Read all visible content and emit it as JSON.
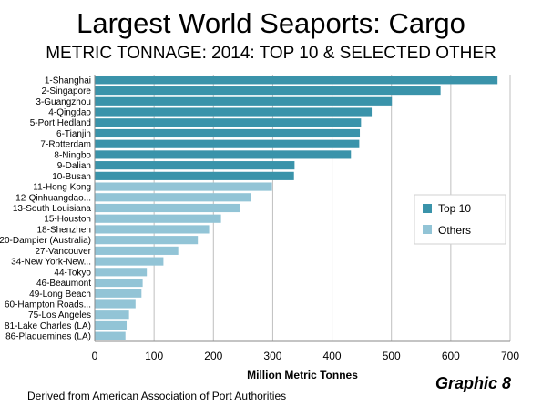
{
  "title": "Largest World Seaports: Cargo",
  "subtitle": "METRIC TONNAGE: 2014: TOP 10 & SELECTED OTHER",
  "graphic_label": "Graphic 8",
  "source": "Derived from American Association of Port Authorities",
  "colors": {
    "top10": "#3a93aa",
    "others": "#92c4d6",
    "grid": "#bfbfbf",
    "axis": "#888888"
  },
  "chart_data": {
    "type": "bar",
    "orientation": "horizontal",
    "title": "Largest World Seaports: Cargo",
    "subtitle": "METRIC TONNAGE: 2014: TOP 10 & SELECTED OTHER",
    "xlabel": "Million Metric Tonnes",
    "ylabel": "",
    "xlim": [
      0,
      700
    ],
    "xticks": [
      "0",
      "100",
      "200",
      "300",
      "400",
      "500",
      "600",
      "700"
    ],
    "grid": true,
    "legend_position": "right",
    "legend": [
      {
        "name": "Top 10",
        "color": "#3a93aa"
      },
      {
        "name": "Others",
        "color": "#92c4d6"
      }
    ],
    "categories": [
      "1-Shanghai",
      "2-Singapore",
      "3-Guangzhou",
      "4-Qingdao",
      "5-Port Hedland",
      "6-Tianjin",
      "7-Rotterdam",
      "8-Ningbo",
      "9-Dalian",
      "10-Busan",
      "11-Hong Kong",
      "12-Qinhuangdao...",
      "13-South Louisiana",
      "15-Houston",
      "18-Shenzhen",
      "20-Dampier (Australia)",
      "27-Vancouver",
      "34-New York-New...",
      "44-Tokyo",
      "46-Beaumont",
      "49-Long Beach",
      "60-Hampton Roads...",
      "75-Los Angeles",
      "81-Lake Charles (LA)",
      "86-Plaquemines (LA)"
    ],
    "values": [
      678,
      582,
      500,
      466,
      448,
      446,
      445,
      431,
      336,
      335,
      298,
      262,
      244,
      212,
      192,
      173,
      140,
      115,
      87,
      80,
      78,
      68,
      57,
      53,
      51
    ],
    "series_membership": [
      "Top 10",
      "Top 10",
      "Top 10",
      "Top 10",
      "Top 10",
      "Top 10",
      "Top 10",
      "Top 10",
      "Top 10",
      "Top 10",
      "Others",
      "Others",
      "Others",
      "Others",
      "Others",
      "Others",
      "Others",
      "Others",
      "Others",
      "Others",
      "Others",
      "Others",
      "Others",
      "Others",
      "Others"
    ]
  }
}
